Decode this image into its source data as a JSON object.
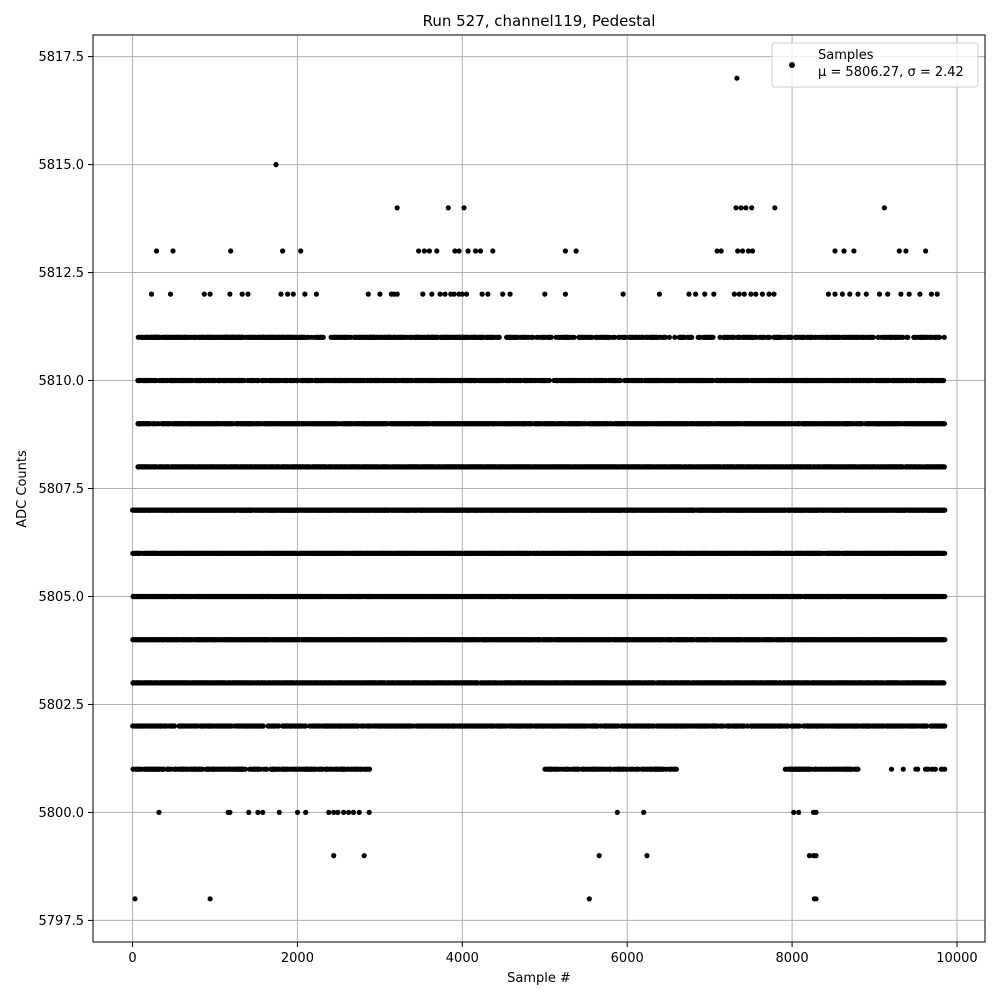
{
  "chart_data": {
    "type": "scatter",
    "title": "Run 527, channel119, Pedestal",
    "xlabel": "Sample #",
    "ylabel": "ADC Counts",
    "xlim": [
      -480,
      10340
    ],
    "ylim": [
      5797.0,
      5818.0
    ],
    "xticks": [
      0,
      2000,
      4000,
      6000,
      8000,
      10000
    ],
    "xtick_labels": [
      "0",
      "2000",
      "4000",
      "6000",
      "8000",
      "10000"
    ],
    "yticks": [
      5797.5,
      5800.0,
      5802.5,
      5805.0,
      5807.5,
      5810.0,
      5812.5,
      5815.0,
      5817.5
    ],
    "ytick_labels": [
      "5797.5",
      "5800.0",
      "5802.5",
      "5805.0",
      "5807.5",
      "5810.0",
      "5812.5",
      "5815.0",
      "5817.5"
    ],
    "grid": true,
    "legend_position": "top-right",
    "marker_color": "#000000",
    "series": [
      {
        "name": "Samples",
        "legend_stats": "μ = 5806.27, σ = 2.42",
        "n_samples": 9850,
        "band_density": [
          {
            "y": 5817,
            "x": [
              7330
            ]
          },
          {
            "y": 5815,
            "x": [
              1740
            ]
          },
          {
            "y": 5814,
            "x": [
              3210,
              3830,
              4020,
              7320,
              7380,
              7440,
              7510,
              7790,
              9120
            ]
          },
          {
            "y": 5813,
            "x": [
              290,
              490,
              1190,
              1820,
              2040,
              3470,
              3540,
              3600,
              3690,
              3910,
              3960,
              4070,
              4160,
              4220,
              4370,
              5250,
              5380,
              7090,
              7140,
              7340,
              7400,
              7470,
              7520,
              8520,
              8630,
              8750,
              9300,
              9380,
              9620
            ]
          },
          {
            "y": 5812,
            "x": [
              230,
              460,
              870,
              940,
              1180,
              1330,
              1400,
              1800,
              1880,
              1950,
              2090,
              2230,
              2860,
              3000,
              3140,
              3170,
              3210,
              3520,
              3630,
              3730,
              3790,
              3860,
              3900,
              3960,
              4000,
              4050,
              4240,
              4310,
              4490,
              4580,
              5000,
              5250,
              5950,
              6390,
              6750,
              6830,
              6940,
              7050,
              7300,
              7360,
              7420,
              7500,
              7560,
              7640,
              7720,
              7780,
              8440,
              8520,
              8610,
              8700,
              8800,
              8900,
              9060,
              9160,
              9320,
              9420,
              9550,
              9690,
              9760
            ]
          },
          {
            "segments": [
              [
                60,
                9850,
                0.55
              ],
              [
                100,
                2100,
                0.5
              ],
              [
                2800,
                4300,
                0.6
              ]
            ],
            "y": 5811
          },
          {
            "segments": [
              [
                60,
                9850,
                0.75
              ]
            ],
            "y": 5810
          },
          {
            "segments": [
              [
                60,
                9850,
                0.9
              ]
            ],
            "y": 5809
          },
          {
            "segments": [
              [
                60,
                9850,
                1.0
              ]
            ],
            "y": 5808
          },
          {
            "segments": [
              [
                0,
                9850,
                1.0
              ]
            ],
            "y": 5807
          },
          {
            "segments": [
              [
                0,
                9850,
                1.0
              ]
            ],
            "y": 5806
          },
          {
            "segments": [
              [
                0,
                9850,
                1.0
              ]
            ],
            "y": 5805
          },
          {
            "segments": [
              [
                0,
                9850,
                1.0
              ]
            ],
            "y": 5804
          },
          {
            "segments": [
              [
                0,
                9850,
                0.95
              ]
            ],
            "y": 5803
          },
          {
            "segments": [
              [
                0,
                9850,
                0.7
              ]
            ],
            "y": 5802
          },
          {
            "segments": [
              [
                0,
                2900,
                0.6
              ],
              [
                5000,
                6600,
                0.6
              ],
              [
                7900,
                8800,
                0.7
              ],
              [
                9200,
                9850,
                0.2
              ]
            ],
            "y": 5801
          },
          {
            "y": 5800,
            "x": [
              320,
              1160,
              1180,
              1410,
              1520,
              1580,
              1780,
              2000,
              2100,
              2380,
              2440,
              2490,
              2560,
              2620,
              2680,
              2750,
              2870,
              5880,
              6200,
              8020,
              8080,
              8260,
              8290
            ]
          },
          {
            "y": 5799,
            "x": [
              2440,
              2810,
              5660,
              6240,
              8210,
              8260,
              8290
            ]
          },
          {
            "y": 5798,
            "x": [
              30,
              940,
              5540,
              8270,
              8290
            ]
          }
        ]
      }
    ]
  }
}
